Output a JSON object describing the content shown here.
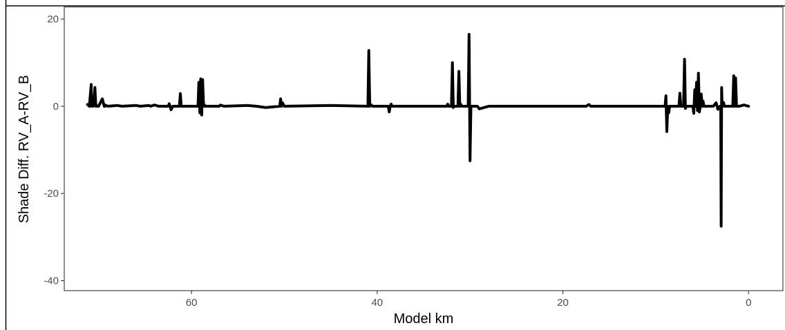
{
  "chart_data": {
    "type": "line",
    "title": "",
    "xlabel": "Model km",
    "ylabel": "Shade Diff. RV_A-RV_B",
    "x_reversed": true,
    "xlim": [
      73.7,
      -3.7
    ],
    "ylim": [
      -42.3,
      22.8
    ],
    "x_ticks": [
      60,
      40,
      20,
      0
    ],
    "x_tick_labels": [
      "60",
      "40",
      "20",
      "0"
    ],
    "y_ticks": [
      20,
      0,
      -20,
      -40
    ],
    "y_tick_labels": [
      "20",
      "0",
      "-20",
      "-40"
    ],
    "grid": false,
    "legend": "none",
    "line_color": "#000000",
    "series": [
      {
        "x": [
          71.2,
          71.0,
          70.8,
          70.8,
          70.7,
          70.6,
          70.4,
          70.3,
          70.3,
          70.2,
          70.0,
          69.6,
          69.4,
          69.3,
          69.3,
          69.2,
          69.0,
          68.0,
          67.5,
          66.0,
          65.5,
          64.6,
          64.4,
          64.0,
          63.5,
          62.5,
          62.4,
          62.3,
          62.2,
          62.0,
          61.3,
          61.2,
          61.1,
          61.0,
          59.3,
          59.2,
          59.1,
          59.0,
          58.9,
          58.8,
          58.7,
          58.6,
          58.5,
          58.4,
          57.0,
          56.9,
          56.5,
          54.0,
          53.0,
          52.0,
          50.5,
          50.4,
          50.3,
          50.2,
          50.0,
          45.0,
          41.0,
          40.9,
          40.8,
          40.7,
          40.5,
          38.8,
          38.7,
          38.6,
          38.5,
          38.4,
          32.5,
          32.4,
          32.3,
          32.0,
          31.9,
          31.8,
          31.7,
          31.6,
          31.3,
          31.2,
          31.1,
          31.0,
          30.9,
          30.2,
          30.1,
          30.0,
          29.9,
          29.8,
          29.2,
          29.0,
          28.0,
          17.5,
          17.2,
          17.0,
          9.0,
          8.9,
          8.8,
          8.7,
          8.6,
          8.5,
          7.5,
          7.4,
          7.3,
          7.2,
          7.0,
          6.9,
          6.8,
          6.7,
          6.6,
          6.0,
          5.9,
          5.8,
          5.7,
          5.6,
          5.5,
          5.4,
          5.3,
          5.2,
          5.1,
          5.0,
          4.9,
          4.8,
          4.6,
          4.5,
          4.0,
          3.8,
          3.5,
          3.3,
          3.1,
          3.0,
          2.95,
          2.9,
          2.85,
          2.8,
          2.7,
          2.6,
          2.5,
          2.4,
          1.7,
          1.6,
          1.5,
          1.4,
          1.3,
          1.2,
          1.0,
          0.5,
          0.0
        ],
        "y": [
          0.4,
          0.0,
          5.0,
          0.0,
          0.5,
          0.0,
          4.3,
          0.0,
          0.4,
          0.0,
          0.0,
          1.7,
          0.0,
          0.3,
          0.0,
          0.2,
          0.0,
          0.2,
          0.0,
          0.2,
          0.0,
          0.2,
          0.0,
          0.3,
          0.0,
          0.0,
          0.6,
          0.0,
          -0.8,
          0.0,
          0.0,
          2.9,
          0.0,
          0.0,
          0.0,
          5.5,
          -1.5,
          6.3,
          -2.0,
          6.1,
          0.0,
          0.3,
          0.0,
          0.0,
          0.0,
          0.3,
          0.0,
          0.2,
          0.0,
          -0.3,
          0.0,
          1.7,
          0.0,
          0.8,
          0.0,
          0.2,
          0.0,
          12.8,
          0.0,
          0.4,
          0.0,
          0.0,
          -1.3,
          0.0,
          0.5,
          0.0,
          0.0,
          0.5,
          0.0,
          0.0,
          10.0,
          -0.3,
          0.0,
          0.0,
          0.0,
          8.0,
          0.0,
          0.5,
          0.0,
          0.0,
          16.5,
          -12.5,
          0.0,
          0.0,
          0.0,
          -0.6,
          0.0,
          0.0,
          0.4,
          0.0,
          0.0,
          2.4,
          -5.8,
          0.0,
          -1.5,
          0.0,
          0.0,
          3.0,
          0.0,
          0.0,
          0.0,
          10.8,
          -0.5,
          0.0,
          0.0,
          0.0,
          -1.6,
          3.8,
          0.0,
          5.5,
          -1.0,
          7.6,
          -1.3,
          0.0,
          2.8,
          0.0,
          1.2,
          0.0,
          0.0,
          0.0,
          0.0,
          0.0,
          0.8,
          -0.7,
          0.0,
          0.0,
          -27.5,
          4.3,
          0.0,
          0.0,
          0.9,
          0.0,
          0.0,
          0.0,
          0.0,
          7.0,
          0.0,
          6.5,
          0.0,
          0.0,
          0.0,
          0.3,
          0.0
        ]
      }
    ]
  }
}
